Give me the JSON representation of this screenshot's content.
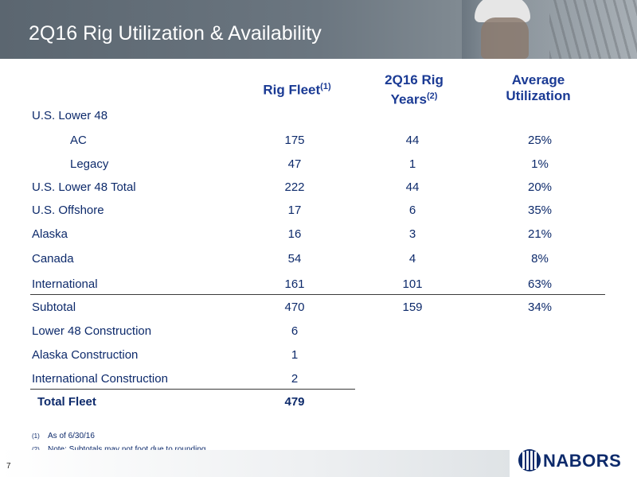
{
  "title": "2Q16 Rig Utilization & Availability",
  "headers": {
    "rig_fleet": "Rig Fleet",
    "rig_fleet_note": "(1)",
    "rig_years_line1": "2Q16 Rig",
    "rig_years_line2": "Years",
    "rig_years_note": "(2)",
    "utilization_line1": "Average",
    "utilization_line2": "Utilization"
  },
  "rows": [
    {
      "label": "U.S. Lower 48",
      "fleet": "",
      "years": "",
      "util": ""
    },
    {
      "label": "AC",
      "fleet": "175",
      "years": "44",
      "util": "25%"
    },
    {
      "label": "Legacy",
      "fleet": "47",
      "years": "1",
      "util": "1%"
    },
    {
      "label": "U.S. Lower 48 Total",
      "fleet": "222",
      "years": "44",
      "util": "20%"
    },
    {
      "label": "U.S. Offshore",
      "fleet": "17",
      "years": "6",
      "util": "35%"
    },
    {
      "label": "Alaska",
      "fleet": "16",
      "years": "3",
      "util": "21%"
    },
    {
      "label": "Canada",
      "fleet": "54",
      "years": "4",
      "util": "8%"
    },
    {
      "label": "International",
      "fleet": "161",
      "years": "101",
      "util": "63%"
    },
    {
      "label": "Subtotal",
      "fleet": "470",
      "years": "159",
      "util": "34%"
    },
    {
      "label": "Lower 48 Construction",
      "fleet": "6",
      "years": "",
      "util": ""
    },
    {
      "label": "Alaska Construction",
      "fleet": "1",
      "years": "",
      "util": ""
    },
    {
      "label": "International Construction",
      "fleet": "2",
      "years": "",
      "util": ""
    },
    {
      "label": "Total Fleet",
      "fleet": "479",
      "years": "",
      "util": ""
    }
  ],
  "footnotes": [
    {
      "mark": "(1)",
      "text": "As of 6/30/16"
    },
    {
      "mark": "(2)",
      "text": "Note:  Subtotals may not foot due to rounding"
    }
  ],
  "page_number": "7",
  "logo_text": "NABORS"
}
